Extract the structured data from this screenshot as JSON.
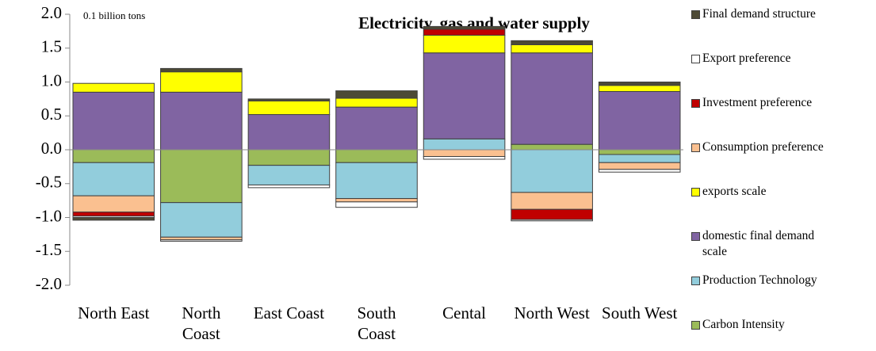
{
  "chart_data": {
    "type": "bar",
    "stacked": true,
    "title": "Electricity, gas and water supply",
    "annotation": "0.1 billion tons",
    "categories": [
      "North East",
      "North Coast",
      "East Coast",
      "South Coast",
      "Cental",
      "North West",
      "South West"
    ],
    "series": [
      {
        "name": "Final demand structure",
        "color": "#4d4a36",
        "values": [
          -0.04,
          0.05,
          0.03,
          0.11,
          0.04,
          0.06,
          0.05
        ]
      },
      {
        "name": "Export preference",
        "color": "#ffffff",
        "values": [
          -0.02,
          -0.02,
          -0.04,
          -0.08,
          -0.04,
          -0.02,
          -0.04
        ]
      },
      {
        "name": "Investment preference",
        "color": "#c00000",
        "values": [
          -0.06,
          0,
          0,
          0,
          0.09,
          -0.15,
          0
        ]
      },
      {
        "name": "Consumption preference",
        "color": "#fac090",
        "values": [
          -0.24,
          -0.04,
          0,
          -0.05,
          -0.1,
          -0.25,
          -0.1
        ]
      },
      {
        "name": "exports scale",
        "color": "#ffff00",
        "values": [
          0.13,
          0.3,
          0.2,
          0.13,
          0.26,
          0.12,
          0.09
        ]
      },
      {
        "name": "domestic final demand scale",
        "color": "#8064a2",
        "values": [
          0.85,
          0.85,
          0.52,
          0.63,
          1.27,
          1.35,
          0.86
        ]
      },
      {
        "name": "Production Technology",
        "color": "#92cddc",
        "values": [
          -0.49,
          -0.51,
          -0.29,
          -0.53,
          0.16,
          -0.63,
          -0.12
        ]
      },
      {
        "name": "Carbon Intensity",
        "color": "#9bbb59",
        "values": [
          -0.19,
          -0.78,
          -0.23,
          -0.19,
          0,
          0.08,
          -0.07
        ]
      }
    ],
    "ylim": [
      -2.0,
      2.0
    ],
    "yticks": [
      {
        "value": -2.0,
        "label": "-2.0"
      },
      {
        "value": -1.5,
        "label": "-1.5"
      },
      {
        "value": -1.0,
        "label": "-1.0"
      },
      {
        "value": -0.5,
        "label": "-0.5"
      },
      {
        "value": 0,
        "label": "0.0"
      },
      {
        "value": 0.5,
        "label": "0.5"
      },
      {
        "value": 1.0,
        "label": "1.0"
      },
      {
        "value": 1.5,
        "label": "1.5"
      },
      {
        "value": 2.0,
        "label": "2.0"
      }
    ],
    "grid": false
  }
}
